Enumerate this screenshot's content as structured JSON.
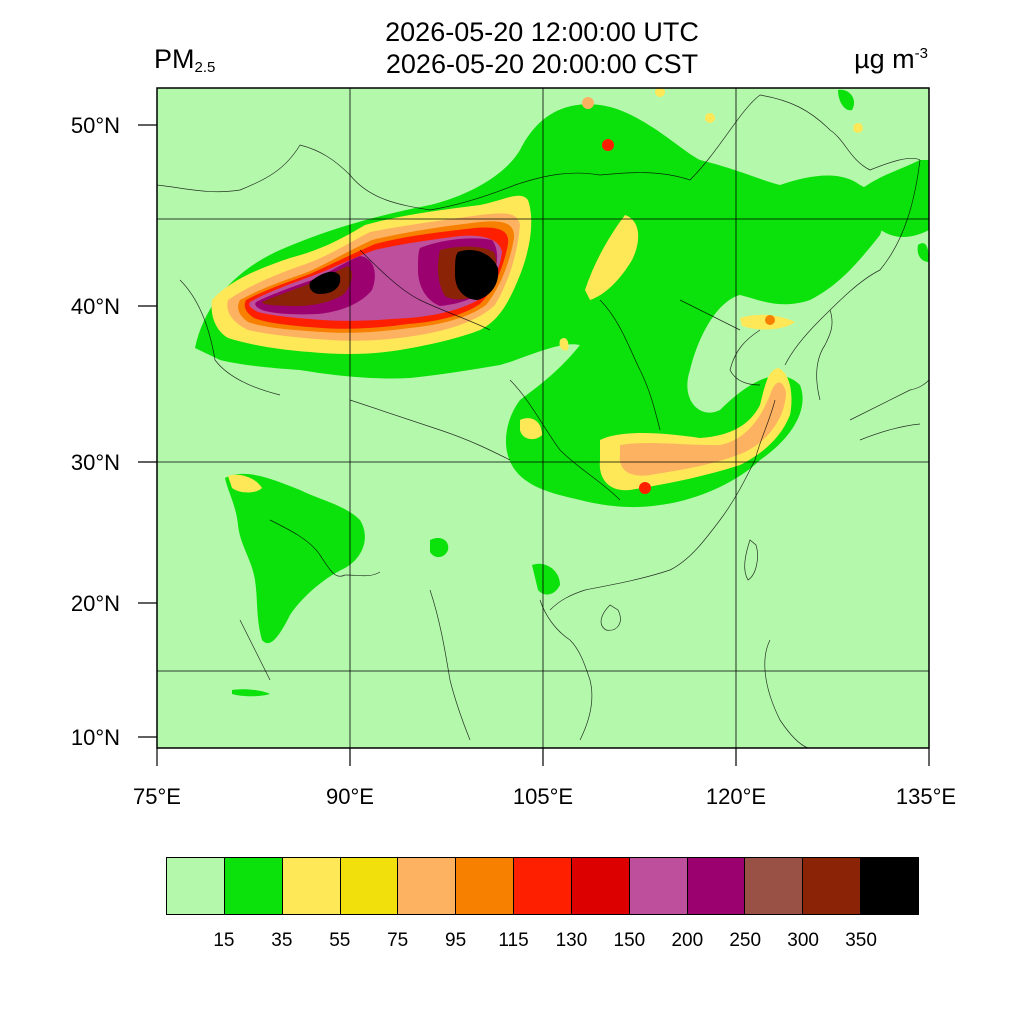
{
  "title_utc": "2026-05-20 12:00:00 UTC",
  "title_cst": "2026-05-20 20:00:00 CST",
  "variable": {
    "base": "PM",
    "subscript": "2.5"
  },
  "units": {
    "base": "µg m",
    "superscript": "-3"
  },
  "y_ticks": [
    "50°N",
    "40°N",
    "30°N",
    "20°N",
    "10°N"
  ],
  "x_ticks": [
    "75°E",
    "90°E",
    "105°E",
    "120°E",
    "135°E"
  ],
  "colorbar": {
    "labels": [
      "15",
      "35",
      "55",
      "75",
      "95",
      "115",
      "130",
      "150",
      "200",
      "250",
      "300",
      "350"
    ],
    "colors": [
      "#b4f8ac",
      "#0be10a",
      "#fee858",
      "#f1e00c",
      "#fdb261",
      "#f78000",
      "#fe1f00",
      "#dc0000",
      "#bd4f9d",
      "#9c0170",
      "#985144",
      "#8b2406",
      "#000000"
    ]
  }
}
